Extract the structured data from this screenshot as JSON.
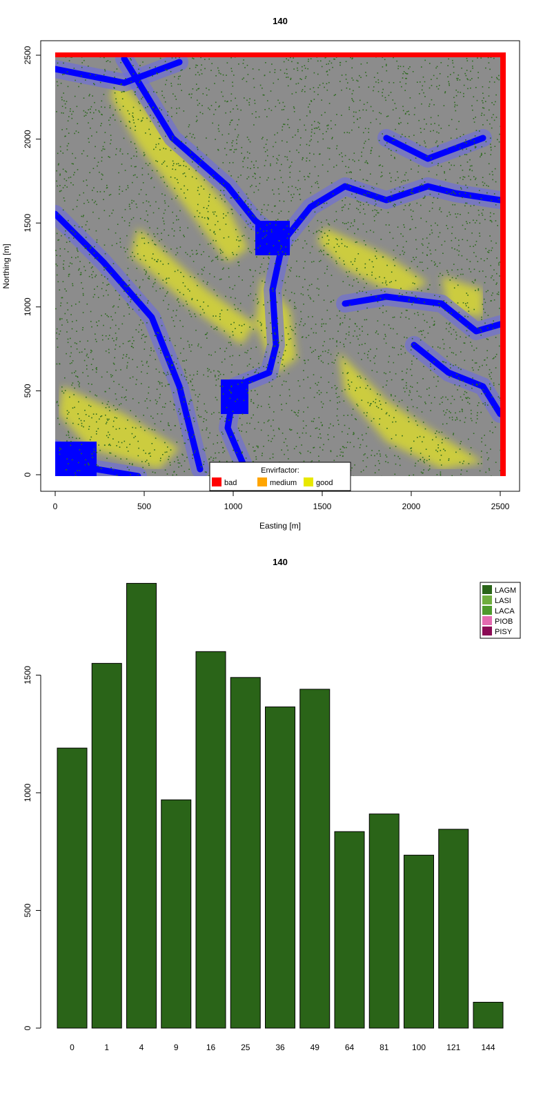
{
  "chart_data": [
    {
      "type": "heatmap",
      "title": "140",
      "xlabel": "Easting [m]",
      "ylabel": "Northing [m]",
      "xlim": [
        0,
        2500
      ],
      "ylim": [
        0,
        2500
      ],
      "xticks": [
        0,
        500,
        1000,
        1500,
        2000,
        2500
      ],
      "yticks": [
        0,
        500,
        1000,
        1500,
        2000,
        2500
      ],
      "description_layers": [
        "environmental raster (blue–grey–yellow)",
        "tree points (dark green)",
        "border markers"
      ],
      "borders": [
        {
          "side": "top",
          "color": "#ff0000"
        },
        {
          "side": "right",
          "color": "#ff0000"
        }
      ],
      "colors": {
        "low": "#0000ff",
        "mid": "#8c8c8c",
        "high": "#d8d830",
        "points": "#2d6a1e"
      },
      "legend": {
        "title": "Envirfactor:",
        "placement": "bottom-center",
        "items": [
          {
            "label": "bad",
            "color": "#ff0000"
          },
          {
            "label": "medium",
            "color": "#ffa500"
          },
          {
            "label": "good",
            "color": "#e8e800"
          }
        ]
      }
    },
    {
      "type": "bar",
      "title": "140",
      "categories": [
        "0",
        "1",
        "4",
        "9",
        "16",
        "25",
        "36",
        "49",
        "64",
        "81",
        "100",
        "121",
        "144"
      ],
      "series": [
        {
          "name": "LAGM",
          "color": "#2a6418",
          "values": [
            1190,
            1550,
            1890,
            970,
            1600,
            1490,
            1365,
            1440,
            835,
            910,
            735,
            845,
            110
          ]
        }
      ],
      "ylim": [
        0,
        1900
      ],
      "yticks": [
        0,
        500,
        1000,
        1500
      ],
      "legend": {
        "placement": "top-right",
        "items": [
          {
            "label": "LAGM",
            "color": "#2a6418"
          },
          {
            "label": "LASI",
            "color": "#6fad3e"
          },
          {
            "label": "LACA",
            "color": "#4e9a2c"
          },
          {
            "label": "PIOB",
            "color": "#e36ab0"
          },
          {
            "label": "PISY",
            "color": "#8b0a55"
          }
        ]
      }
    }
  ]
}
